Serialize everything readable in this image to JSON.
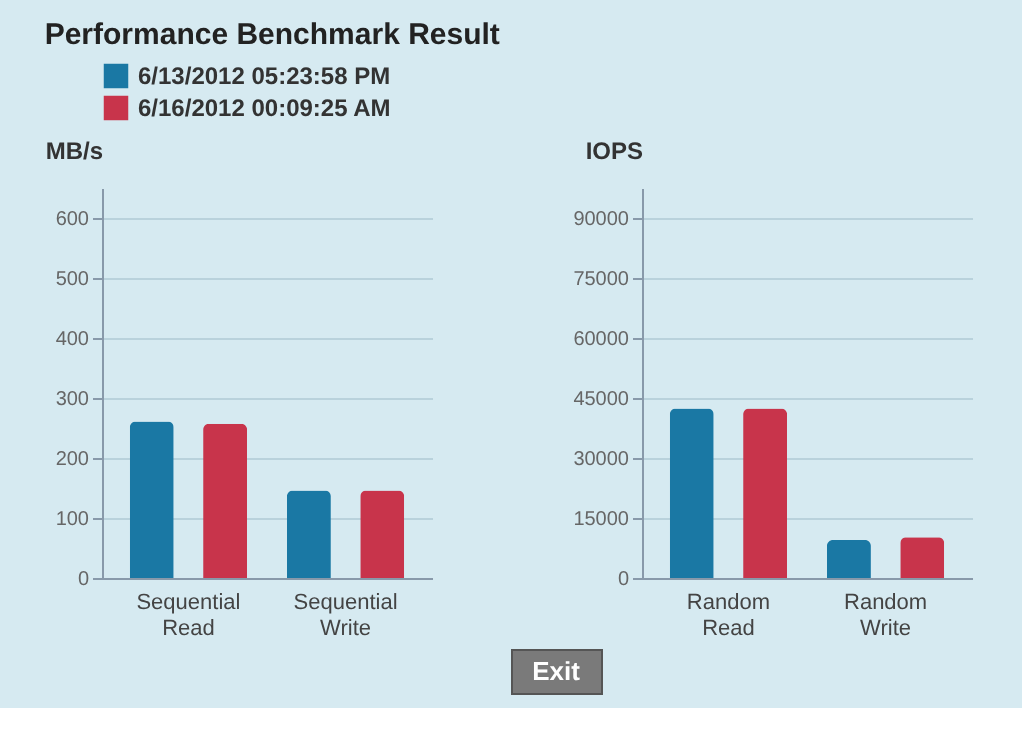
{
  "chart_data": [
    {
      "type": "bar",
      "title": "Performance Benchmark Result",
      "ylabel": "MB/s",
      "categories": [
        "Sequential Read",
        "Sequential Write"
      ],
      "series": [
        {
          "name": "6/13/2012  05:23:58 PM",
          "color": "#1a78a4",
          "values": [
            261,
            146
          ]
        },
        {
          "name": "6/16/2012  00:09:25 AM",
          "color": "#c8344b",
          "values": [
            257,
            146
          ]
        }
      ],
      "ylim": [
        0,
        650
      ],
      "yticks": [
        0,
        100,
        200,
        300,
        400,
        500,
        600
      ],
      "grid": "y",
      "legend": "top left",
      "annotations": [
        "Exit"
      ]
    },
    {
      "type": "bar",
      "ylabel": "IOPS",
      "categories": [
        "Random Read",
        "Random Write"
      ],
      "series": [
        {
          "color": "#1a78a4",
          "values": [
            42400,
            9500
          ]
        },
        {
          "color": "#c8344b",
          "values": [
            42400,
            10200
          ]
        }
      ],
      "ylim": [
        0,
        97500
      ],
      "yticks": [
        0,
        15000,
        30000,
        45000,
        60000,
        75000,
        90000
      ],
      "grid": "y",
      "legend": false
    }
  ]
}
